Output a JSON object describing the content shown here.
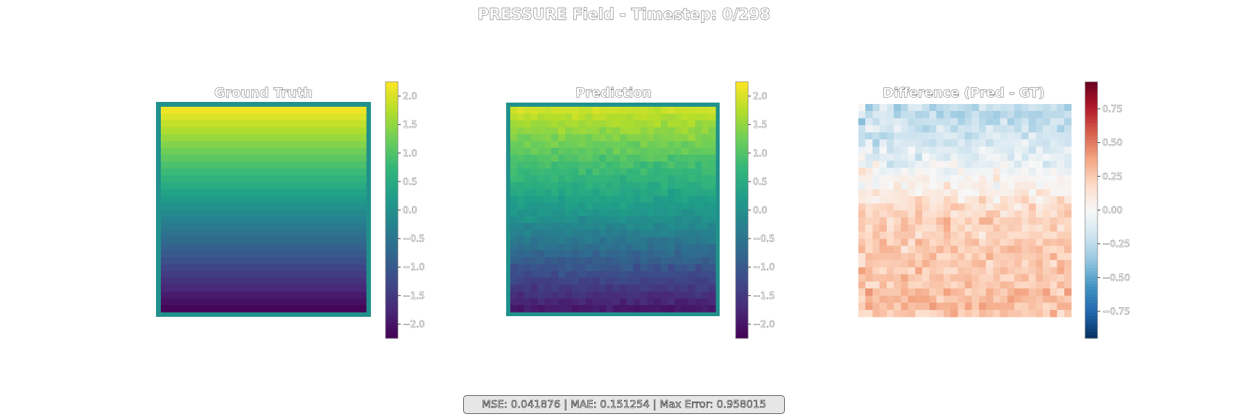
{
  "figure": {
    "title": "PRESSURE Field - Timestep: 0/298",
    "metrics_text": "MSE: 0.041876 | MAE: 0.151254 | Max Error: 0.958015"
  },
  "colors": {
    "viridis_stops": [
      "#440154",
      "#482878",
      "#3e4989",
      "#31688e",
      "#26828e",
      "#1f9e89",
      "#35b779",
      "#6ece58",
      "#b5de2b",
      "#fde725"
    ],
    "rdbu_stops": [
      "#053061",
      "#2166ac",
      "#4393c3",
      "#92c5de",
      "#d1e5f0",
      "#f7f7f7",
      "#fddbc7",
      "#f4a582",
      "#d6604d",
      "#b2182b",
      "#67001f"
    ],
    "frame_teal": "#21918c"
  },
  "chart_data": [
    {
      "type": "heatmap",
      "title": "Ground Truth",
      "colormap": "viridis",
      "grid": [
        30,
        30
      ],
      "colorbar": {
        "range": [
          -2.25,
          2.25
        ],
        "ticks": [
          2.0,
          1.5,
          1.0,
          0.5,
          0.0,
          -0.5,
          -1.0,
          -1.5,
          -2.0
        ]
      },
      "row_values": [
        2.15,
        2.0,
        1.85,
        1.7,
        1.55,
        1.4,
        1.25,
        1.1,
        0.95,
        0.8,
        0.65,
        0.5,
        0.35,
        0.2,
        0.05,
        -0.1,
        -0.25,
        -0.4,
        -0.55,
        -0.7,
        -0.85,
        -1.0,
        -1.15,
        -1.3,
        -1.45,
        -1.6,
        -1.75,
        -1.9,
        -2.05,
        -2.2
      ]
    },
    {
      "type": "heatmap",
      "title": "Prediction",
      "colormap": "viridis",
      "grid": [
        30,
        30
      ],
      "colorbar": {
        "range": [
          -2.25,
          2.25
        ],
        "ticks": [
          2.0,
          1.5,
          1.0,
          0.5,
          0.0,
          -0.5,
          -1.0,
          -1.5,
          -2.0
        ]
      },
      "row_values": [
        1.9,
        1.75,
        1.62,
        1.5,
        1.38,
        1.25,
        1.12,
        1.0,
        0.9,
        0.78,
        0.66,
        0.55,
        0.44,
        0.33,
        0.22,
        0.1,
        -0.02,
        -0.15,
        -0.3,
        -0.45,
        -0.6,
        -0.75,
        -0.9,
        -1.05,
        -1.2,
        -1.35,
        -1.5,
        -1.65,
        -1.8,
        -1.95
      ]
    },
    {
      "type": "heatmap",
      "title": "Difference (Pred - GT)",
      "colormap": "RdBu_r",
      "grid": [
        30,
        30
      ],
      "colorbar": {
        "range": [
          -0.95,
          0.95
        ],
        "ticks": [
          0.75,
          0.5,
          0.25,
          0.0,
          -0.25,
          -0.5,
          -0.75
        ]
      },
      "row_values": [
        -0.25,
        -0.25,
        -0.23,
        -0.2,
        -0.18,
        -0.15,
        -0.12,
        -0.1,
        -0.07,
        -0.03,
        0.01,
        0.05,
        0.09,
        0.13,
        0.17,
        0.2,
        0.23,
        0.23,
        0.22,
        0.25,
        0.25,
        0.25,
        0.25,
        0.25,
        0.25,
        0.25,
        0.3,
        0.3,
        0.3,
        0.25
      ]
    }
  ]
}
